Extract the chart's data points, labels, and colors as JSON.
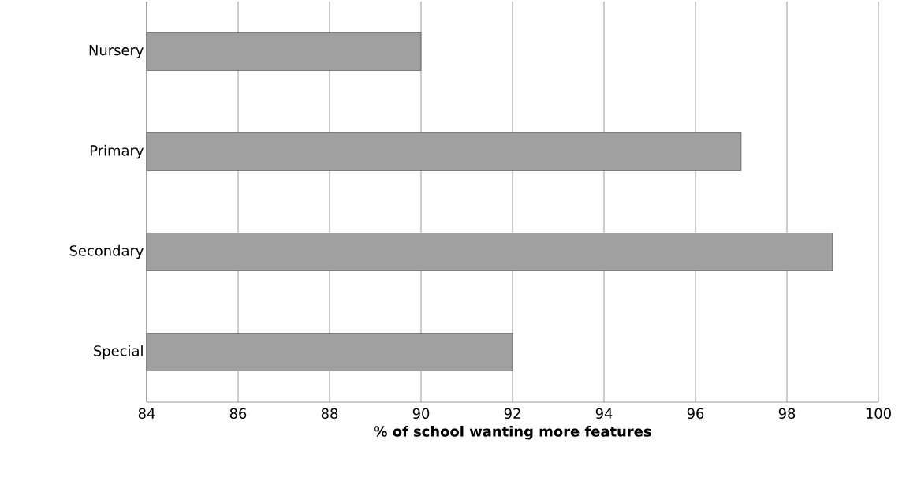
{
  "chart_data": {
    "type": "bar",
    "orientation": "horizontal",
    "categories": [
      "Nursery",
      "Primary",
      "Secondary",
      "Special"
    ],
    "values": [
      90,
      97,
      99,
      92
    ],
    "color": "#a0a0a0",
    "xlabel": "% of school wanting more features",
    "xlim": [
      84,
      100
    ],
    "xticks": [
      84,
      86,
      88,
      90,
      92,
      94,
      96,
      98,
      100
    ],
    "grid": "x"
  }
}
